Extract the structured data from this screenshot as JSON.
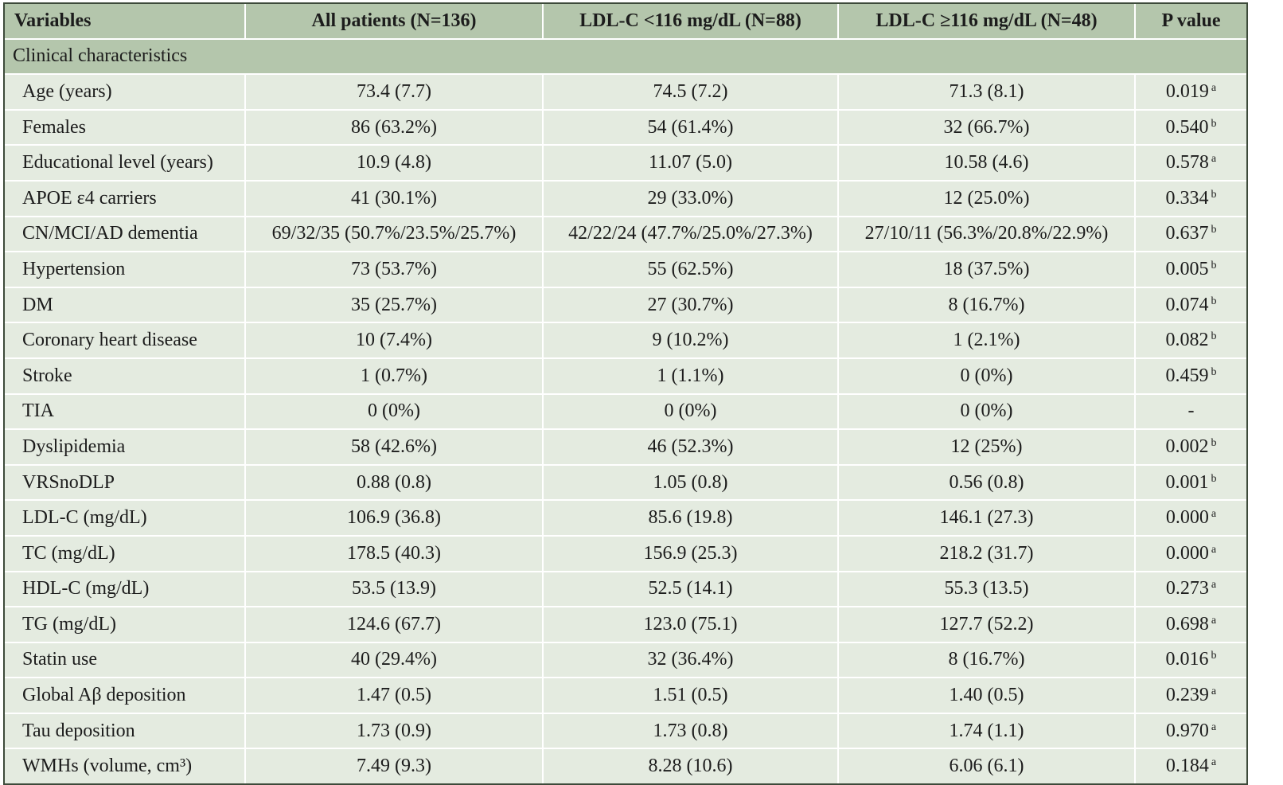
{
  "table": {
    "headers": [
      "Variables",
      "All patients (N=136)",
      "LDL-C <116 mg/dL (N=88)",
      "LDL-C ≥116 mg/dL (N=48)",
      "P value"
    ],
    "section_label": "Clinical characteristics",
    "rows": [
      {
        "variable": "Age (years)",
        "all": "73.4 (7.7)",
        "low": "74.5 (7.2)",
        "high": "71.3 (8.1)",
        "p": "0.019",
        "note": "a"
      },
      {
        "variable": "Females",
        "all": "86 (63.2%)",
        "low": "54 (61.4%)",
        "high": "32 (66.7%)",
        "p": "0.540",
        "note": "b"
      },
      {
        "variable": "Educational level (years)",
        "all": "10.9 (4.8)",
        "low": "11.07 (5.0)",
        "high": "10.58 (4.6)",
        "p": "0.578",
        "note": "a"
      },
      {
        "variable": "APOE ε4 carriers",
        "all": "41 (30.1%)",
        "low": "29 (33.0%)",
        "high": "12 (25.0%)",
        "p": "0.334",
        "note": "b"
      },
      {
        "variable": "CN/MCI/AD dementia",
        "all": "69/32/35 (50.7%/23.5%/25.7%)",
        "low": "42/22/24 (47.7%/25.0%/27.3%)",
        "high": "27/10/11 (56.3%/20.8%/22.9%)",
        "p": "0.637",
        "note": "b"
      },
      {
        "variable": "Hypertension",
        "all": "73 (53.7%)",
        "low": "55 (62.5%)",
        "high": "18 (37.5%)",
        "p": "0.005",
        "note": "b"
      },
      {
        "variable": "DM",
        "all": "35 (25.7%)",
        "low": "27 (30.7%)",
        "high": "8 (16.7%)",
        "p": "0.074",
        "note": "b"
      },
      {
        "variable": "Coronary heart disease",
        "all": "10 (7.4%)",
        "low": "9 (10.2%)",
        "high": "1 (2.1%)",
        "p": "0.082",
        "note": "b"
      },
      {
        "variable": "Stroke",
        "all": "1 (0.7%)",
        "low": "1 (1.1%)",
        "high": "0 (0%)",
        "p": "0.459",
        "note": "b"
      },
      {
        "variable": "TIA",
        "all": "0 (0%)",
        "low": "0 (0%)",
        "high": "0 (0%)",
        "p": "-",
        "note": ""
      },
      {
        "variable": "Dyslipidemia",
        "all": "58 (42.6%)",
        "low": "46 (52.3%)",
        "high": "12 (25%)",
        "p": "0.002",
        "note": "b"
      },
      {
        "variable": "VRSnoDLP",
        "all": "0.88 (0.8)",
        "low": "1.05 (0.8)",
        "high": "0.56 (0.8)",
        "p": "0.001",
        "note": "b"
      },
      {
        "variable": "LDL-C (mg/dL)",
        "all": "106.9 (36.8)",
        "low": "85.6 (19.8)",
        "high": "146.1 (27.3)",
        "p": "0.000",
        "note": "a"
      },
      {
        "variable": "TC (mg/dL)",
        "all": "178.5 (40.3)",
        "low": "156.9 (25.3)",
        "high": "218.2 (31.7)",
        "p": "0.000",
        "note": "a"
      },
      {
        "variable": "HDL-C (mg/dL)",
        "all": "53.5 (13.9)",
        "low": "52.5 (14.1)",
        "high": "55.3 (13.5)",
        "p": "0.273",
        "note": "a"
      },
      {
        "variable": "TG (mg/dL)",
        "all": "124.6 (67.7)",
        "low": "123.0 (75.1)",
        "high": "127.7 (52.2)",
        "p": "0.698",
        "note": "a"
      },
      {
        "variable": "Statin use",
        "all": "40 (29.4%)",
        "low": "32 (36.4%)",
        "high": "8 (16.7%)",
        "p": "0.016",
        "note": "b"
      },
      {
        "variable": "Global Aβ deposition",
        "all": "1.47 (0.5)",
        "low": "1.51 (0.5)",
        "high": "1.40 (0.5)",
        "p": "0.239",
        "note": "a"
      },
      {
        "variable": "Tau deposition",
        "all": "1.73 (0.9)",
        "low": "1.73 (0.8)",
        "high": "1.74 (1.1)",
        "p": "0.970",
        "note": "a"
      },
      {
        "variable": "WMHs (volume, cm³)",
        "all": "7.49 (9.3)",
        "low": "8.28 (10.6)",
        "high": "6.06 (6.1)",
        "p": "0.184",
        "note": "a"
      }
    ]
  },
  "colors": {
    "header_bg": "#b4c6ac",
    "row_bg": "#e4ebe0",
    "border": "#3d4a3a"
  }
}
